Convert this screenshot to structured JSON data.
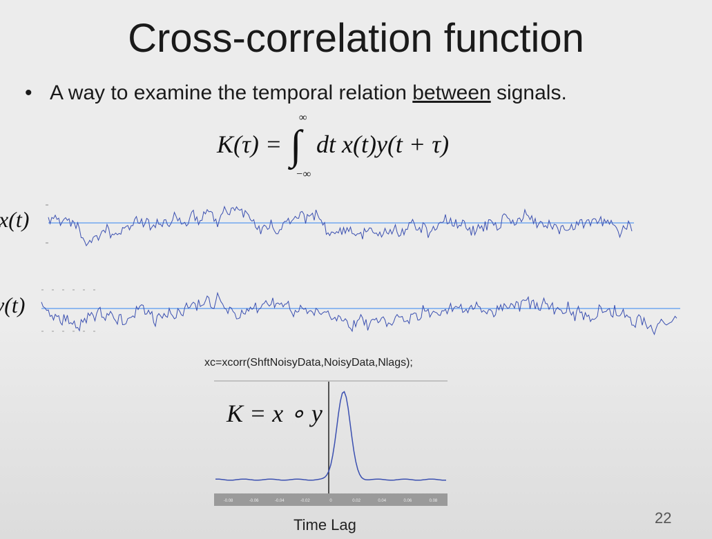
{
  "slide": {
    "title": "Cross-correlation function",
    "bullet_prefix": "A way to examine the temporal relation ",
    "bullet_underlined": "between",
    "bullet_suffix": " signals.",
    "page_number": "22"
  },
  "equation": {
    "lhs": "K(τ) =",
    "upper_limit": "∞",
    "lower_limit": "−∞",
    "integral_sign": "∫",
    "integrand": "dt x(t)y(t + τ)"
  },
  "signals": {
    "x_label": "x(t)",
    "y_label": "y(t)"
  },
  "xcorr": {
    "code": "xc=xcorr(ShftNoisyData,NoisyData,Nlags);",
    "k_equation": "K = x ∘ y",
    "xlabel": "Time Lag",
    "ticks": [
      "-0.08",
      "-0.06",
      "-0.04",
      "-0.02",
      "0",
      "0.02",
      "0.04",
      "0.06",
      "0.08"
    ],
    "peak_lag": 0.01
  },
  "colors": {
    "signal": "#3a4fb0",
    "mean_line": "#8fb8ef",
    "background": "#ececec"
  }
}
